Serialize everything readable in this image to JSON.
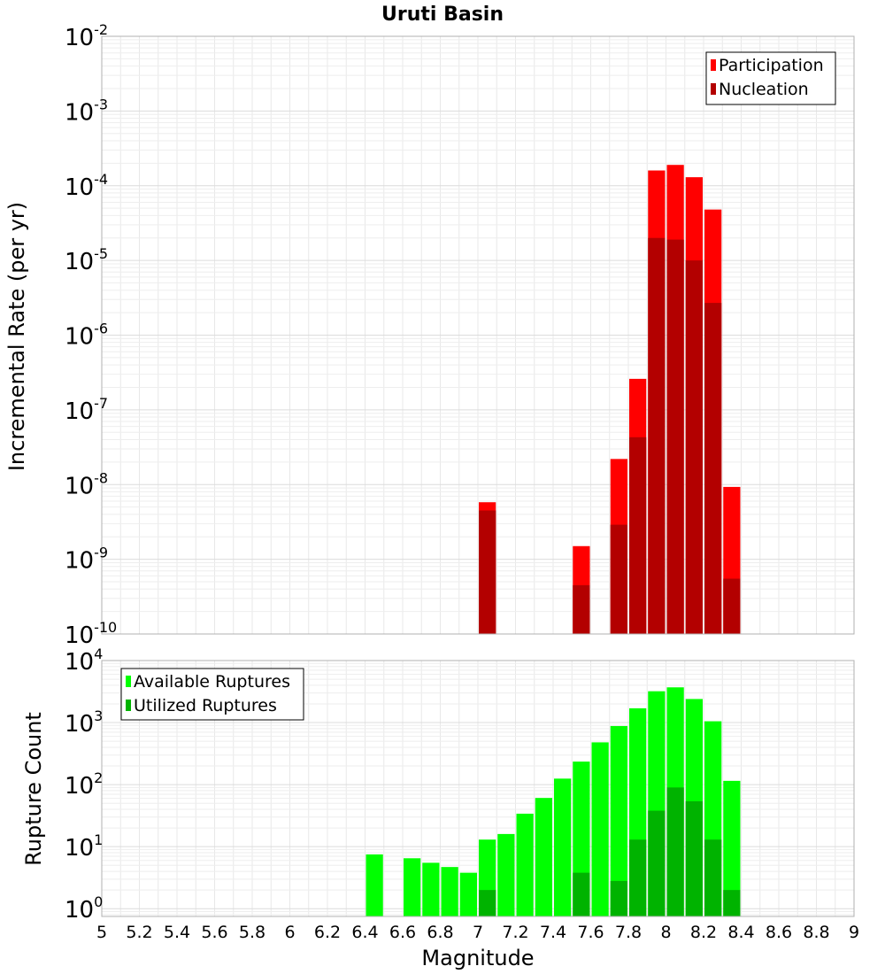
{
  "chart_data": [
    {
      "type": "bar",
      "title": "Uruti Basin",
      "ylabel": "Incremental Rate (per yr)",
      "xlabel": "",
      "yscale": "log",
      "ylim": [
        1e-10,
        0.01
      ],
      "xlim": [
        5,
        9
      ],
      "ytick_labels": [
        {
          "base": "10",
          "exp": "-2"
        },
        {
          "base": "10",
          "exp": "-3"
        },
        {
          "base": "10",
          "exp": "-4"
        },
        {
          "base": "10",
          "exp": "-5"
        },
        {
          "base": "10",
          "exp": "-6"
        },
        {
          "base": "10",
          "exp": "-7"
        },
        {
          "base": "10",
          "exp": "-8"
        },
        {
          "base": "10",
          "exp": "-9"
        },
        {
          "base": "10",
          "exp": "-10"
        }
      ],
      "legend": {
        "position": "top-right",
        "entries": [
          "Participation",
          "Nucleation"
        ]
      },
      "grid": true,
      "bar_width": 0.1,
      "x": [
        7.05,
        7.55,
        7.75,
        7.85,
        7.95,
        8.05,
        8.15,
        8.25,
        8.35
      ],
      "series": [
        {
          "name": "Participation",
          "color": "#ff0000",
          "values": [
            5.8e-09,
            1.5e-09,
            2.2e-08,
            2.6e-07,
            0.00016,
            0.00019,
            0.00013,
            4.8e-05,
            9.3e-09
          ]
        },
        {
          "name": "Nucleation",
          "color": "#b30000",
          "values": [
            4.5e-09,
            4.5e-10,
            2.9e-09,
            4.3e-08,
            2e-05,
            1.9e-05,
            1e-05,
            2.7e-06,
            5.5e-10
          ]
        }
      ]
    },
    {
      "type": "bar",
      "title": "",
      "ylabel": "Rupture Count",
      "xlabel": "Magnitude",
      "yscale": "log",
      "ylim": [
        0.75,
        10000
      ],
      "xlim": [
        5,
        9
      ],
      "ytick_labels": [
        {
          "base": "10",
          "exp": "4"
        },
        {
          "base": "10",
          "exp": "3"
        },
        {
          "base": "10",
          "exp": "2"
        },
        {
          "base": "10",
          "exp": "1"
        },
        {
          "base": "10",
          "exp": "0"
        }
      ],
      "xtick_labels": [
        "5",
        "5.2",
        "5.4",
        "5.6",
        "5.8",
        "6",
        "6.2",
        "6.4",
        "6.6",
        "6.8",
        "7",
        "7.2",
        "7.4",
        "7.6",
        "7.8",
        "8",
        "8.2",
        "8.4",
        "8.6",
        "8.8",
        "9"
      ],
      "legend": {
        "position": "top-left",
        "entries": [
          "Available Ruptures",
          "Utilized Ruptures"
        ]
      },
      "grid": true,
      "bar_width": 0.1,
      "series": [
        {
          "name": "Available Ruptures",
          "color": "#00ff00",
          "x": [
            6.45,
            6.65,
            6.75,
            6.85,
            6.95,
            7.05,
            7.15,
            7.25,
            7.35,
            7.45,
            7.55,
            7.65,
            7.75,
            7.85,
            7.95,
            8.05,
            8.15,
            8.25,
            8.35
          ],
          "values": [
            7.5,
            6.5,
            5.5,
            4.7,
            3.8,
            13,
            16,
            34,
            61,
            125,
            235,
            480,
            880,
            1700,
            3200,
            3700,
            2400,
            1050,
            115
          ]
        },
        {
          "name": "Utilized Ruptures",
          "color": "#00b300",
          "x": [
            7.05,
            7.55,
            7.75,
            7.85,
            7.95,
            8.05,
            8.15,
            8.25,
            8.35
          ],
          "values": [
            2,
            3.8,
            2.8,
            13,
            38,
            90,
            54,
            13,
            2
          ]
        }
      ]
    }
  ]
}
